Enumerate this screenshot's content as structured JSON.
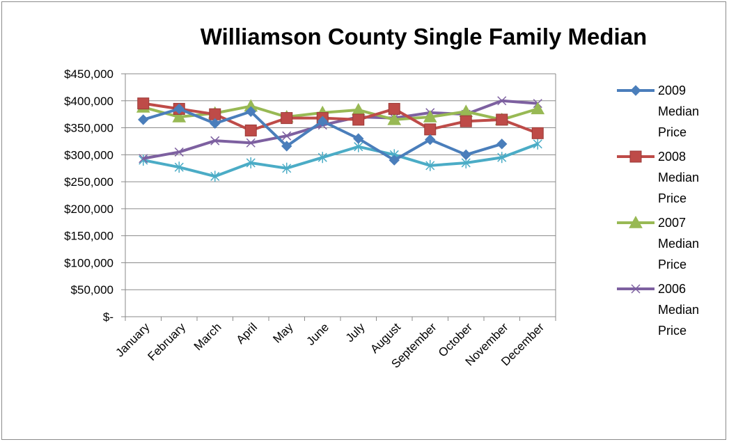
{
  "chart_data": {
    "type": "line",
    "title": "Williamson County Single Family Median",
    "xlabel": "",
    "ylabel": "",
    "ylim": [
      0,
      450000
    ],
    "y_ticks": [
      0,
      50000,
      100000,
      150000,
      200000,
      250000,
      300000,
      350000,
      400000,
      450000
    ],
    "y_tick_labels": [
      "$-",
      "$50,000",
      "$100,000",
      "$150,000",
      "$200,000",
      "$250,000",
      "$300,000",
      "$350,000",
      "$400,000",
      "$450,000"
    ],
    "grid": "horizontal",
    "legend": "right",
    "categories": [
      "January",
      "February",
      "March",
      "April",
      "May",
      "June",
      "July",
      "August",
      "September",
      "October",
      "November",
      "December"
    ],
    "series": [
      {
        "name": "2009 Median Price",
        "legend_lines": [
          "2009",
          "Median",
          "Price"
        ],
        "color": "#4a7ebb",
        "marker": "diamond",
        "values": [
          365000,
          385000,
          358000,
          380000,
          316000,
          362000,
          330000,
          290000,
          328000,
          300000,
          320000,
          null
        ]
      },
      {
        "name": "2008 Median Price",
        "legend_lines": [
          "2008",
          "Median",
          "Price"
        ],
        "color": "#be4b48",
        "marker": "square",
        "values": [
          395000,
          385000,
          375000,
          345000,
          368000,
          368000,
          365000,
          385000,
          347000,
          362000,
          365000,
          340000
        ]
      },
      {
        "name": "2007 Median Price",
        "legend_lines": [
          "2007",
          "Median",
          "Price"
        ],
        "color": "#98b954",
        "marker": "triangle",
        "values": [
          388000,
          370000,
          377000,
          390000,
          370000,
          378000,
          383000,
          365000,
          370000,
          380000,
          365000,
          385000
        ]
      },
      {
        "name": "2006 Median Price",
        "legend_lines": [
          "2006",
          "Median",
          "Price"
        ],
        "color": "#7d60a0",
        "marker": "x",
        "values": [
          293000,
          305000,
          326000,
          322000,
          335000,
          355000,
          370000,
          368000,
          378000,
          375000,
          400000,
          395000
        ]
      },
      {
        "name": "",
        "legend_lines": [],
        "color": "#4bacc6",
        "marker": "star",
        "values": [
          290000,
          277000,
          260000,
          285000,
          275000,
          295000,
          315000,
          300000,
          280000,
          285000,
          295000,
          320000
        ]
      }
    ]
  }
}
